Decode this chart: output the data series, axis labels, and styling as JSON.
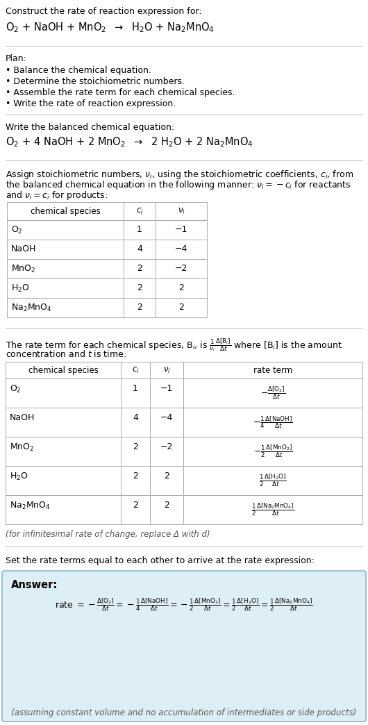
{
  "bg_color": "#ffffff",
  "text_color": "#000000",
  "gray_text": "#555555",
  "title_line1": "Construct the rate of reaction expression for:",
  "plan_header": "Plan:",
  "plan_items": [
    "• Balance the chemical equation.",
    "• Determine the stoichiometric numbers.",
    "• Assemble the rate term for each chemical species.",
    "• Write the rate of reaction expression."
  ],
  "balanced_header": "Write the balanced chemical equation:",
  "stoich_line1": "Assign stoichiometric numbers, $\\nu_i$, using the stoichiometric coefficients, $c_i$, from",
  "stoich_line2": "the balanced chemical equation in the following manner: $\\nu_i = -c_i$ for reactants",
  "stoich_line3": "and $\\nu_i = c_i$ for products:",
  "table1_species": [
    "$\\mathrm{O_2}$",
    "NaOH",
    "$\\mathrm{MnO_2}$",
    "$\\mathrm{H_2O}$",
    "$\\mathrm{Na_2MnO_4}$"
  ],
  "table1_ci": [
    "1",
    "4",
    "2",
    "2",
    "2"
  ],
  "table1_nu": [
    "−1",
    "−4",
    "−2",
    "2",
    "2"
  ],
  "rate_line1": "The rate term for each chemical species, B$_i$, is $\\frac{1}{\\nu_i}\\frac{\\Delta[\\mathrm{B}_i]}{\\Delta t}$ where [B$_i$] is the amount",
  "rate_line2": "concentration and $t$ is time:",
  "table2_species": [
    "$\\mathrm{O_2}$",
    "NaOH",
    "$\\mathrm{MnO_2}$",
    "$\\mathrm{H_2O}$",
    "$\\mathrm{Na_2MnO_4}$"
  ],
  "table2_ci": [
    "1",
    "4",
    "2",
    "2",
    "2"
  ],
  "table2_nu": [
    "−1",
    "−4",
    "−2",
    "2",
    "2"
  ],
  "table2_rate": [
    "$-\\frac{\\Delta[\\mathrm{O_2}]}{\\Delta t}$",
    "$-\\frac{1}{4}\\frac{\\Delta[\\mathrm{NaOH}]}{\\Delta t}$",
    "$-\\frac{1}{2}\\frac{\\Delta[\\mathrm{MnO_2}]}{\\Delta t}$",
    "$\\frac{1}{2}\\frac{\\Delta[\\mathrm{H_2O}]}{\\Delta t}$",
    "$\\frac{1}{2}\\frac{\\Delta[\\mathrm{Na_2MnO_4}]}{\\Delta t}$"
  ],
  "infinitesimal_note": "(for infinitesimal rate of change, replace Δ with d)",
  "set_equal_header": "Set the rate terms equal to each other to arrive at the rate expression:",
  "answer_box_bg": "#ddeef5",
  "answer_box_border": "#88bbcc",
  "answer_label": "Answer:",
  "rate_answer": "rate $= -\\frac{\\Delta[\\mathrm{O_2}]}{\\Delta t} = -\\frac{1}{4}\\frac{\\Delta[\\mathrm{NaOH}]}{\\Delta t} = -\\frac{1}{2}\\frac{\\Delta[\\mathrm{MnO_2}]}{\\Delta t} = \\frac{1}{2}\\frac{\\Delta[\\mathrm{H_2O}]}{\\Delta t} = \\frac{1}{2}\\frac{\\Delta[\\mathrm{Na_2MnO_4}]}{\\Delta t}$",
  "assuming_note": "(assuming constant volume and no accumulation of intermediates or side products)"
}
